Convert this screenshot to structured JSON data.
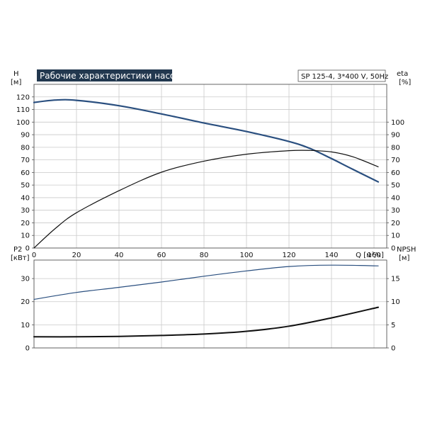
{
  "chart_data": [
    {
      "type": "line",
      "title": "Рабочие характеристики насоса",
      "note": "SP 125-4, 3*400 V, 50Hz",
      "x_label": "Q [м³/ч]",
      "x_range": [
        0,
        166
      ],
      "x_ticks": [
        0,
        20,
        40,
        60,
        80,
        100,
        120,
        140,
        160
      ],
      "y_left": {
        "label": "H",
        "unit": "[м]",
        "range": [
          0,
          130
        ],
        "ticks": [
          0,
          10,
          20,
          30,
          40,
          50,
          60,
          70,
          80,
          90,
          100,
          110,
          120
        ]
      },
      "y_right": {
        "label": "eta",
        "unit": "[%]",
        "range": [
          0,
          130
        ],
        "ticks": [
          0,
          10,
          20,
          30,
          40,
          50,
          60,
          70,
          80,
          90,
          100
        ]
      },
      "grid": true,
      "series": [
        {
          "axis": "left",
          "color": "#2a4f7f",
          "points": [
            [
              0,
              115.6
            ],
            [
              10,
              117.5
            ],
            [
              20,
              117.3
            ],
            [
              40,
              113.0
            ],
            [
              60,
              106.5
            ],
            [
              80,
              99.3
            ],
            [
              100,
              92.5
            ],
            [
              120,
              84.6
            ],
            [
              130,
              79.0
            ],
            [
              140,
              71.0
            ],
            [
              150,
              62.5
            ],
            [
              162,
              52.5
            ]
          ]
        },
        {
          "axis": "right",
          "color": "#111111",
          "points": [
            [
              0,
              0
            ],
            [
              10,
              15.5
            ],
            [
              20,
              28.0
            ],
            [
              40,
              45.5
            ],
            [
              60,
              60.2
            ],
            [
              80,
              69.0
            ],
            [
              100,
              74.5
            ],
            [
              120,
              77.3
            ],
            [
              130,
              77.5
            ],
            [
              140,
              76.3
            ],
            [
              150,
              72.5
            ],
            [
              162,
              64.5
            ]
          ]
        }
      ]
    },
    {
      "type": "line",
      "x_range": [
        0,
        166
      ],
      "x_ticks": [
        0,
        20,
        40,
        60,
        80,
        100,
        120,
        140,
        160
      ],
      "y_left": {
        "label": "P2",
        "unit": "[кВт]",
        "range": [
          0,
          38
        ],
        "ticks": [
          0,
          10,
          20,
          30
        ]
      },
      "y_right": {
        "label": "NPSH",
        "unit": "[м]",
        "range": [
          0,
          19
        ],
        "ticks": [
          0,
          5,
          10,
          15
        ]
      },
      "grid": true,
      "series": [
        {
          "axis": "left",
          "color": "#2a4f7f",
          "points": [
            [
              0,
              21.0
            ],
            [
              20,
              24.0
            ],
            [
              40,
              26.2
            ],
            [
              60,
              28.5
            ],
            [
              80,
              31.0
            ],
            [
              100,
              33.3
            ],
            [
              120,
              35.2
            ],
            [
              140,
              35.8
            ],
            [
              162,
              35.5
            ]
          ]
        },
        {
          "axis": "right",
          "color": "#111111",
          "points": [
            [
              0,
              2.4
            ],
            [
              20,
              2.4
            ],
            [
              40,
              2.5
            ],
            [
              60,
              2.7
            ],
            [
              80,
              3.0
            ],
            [
              100,
              3.6
            ],
            [
              120,
              4.7
            ],
            [
              140,
              6.5
            ],
            [
              162,
              8.8
            ]
          ]
        }
      ]
    }
  ]
}
